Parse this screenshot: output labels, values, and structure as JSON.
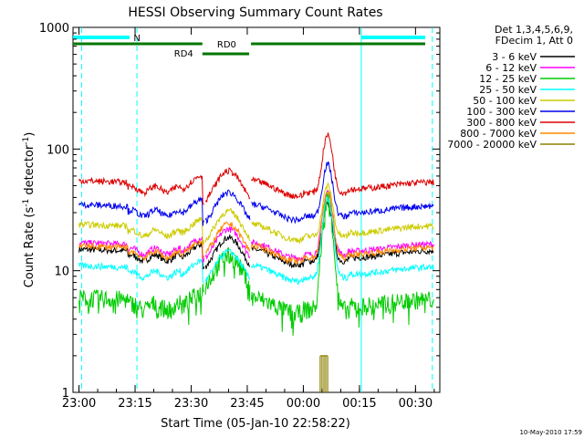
{
  "chart_data": {
    "type": "line",
    "title": "HESSI Observing Summary Count Rates",
    "xlabel": "Start Time (05-Jan-10 22:58:22)",
    "ylabel_prefix": "Count Rate (s",
    "ylabel_sup1": "-1",
    "ylabel_mid": " detector",
    "ylabel_sup2": "-1",
    "ylabel_suffix": ")",
    "yscale": "log",
    "ylim": [
      1,
      1000
    ],
    "xlim_minutes": [
      -2,
      37
    ],
    "x_ticks": [
      {
        "m": 0,
        "label": "23:00"
      },
      {
        "m": 15,
        "label": "23:15"
      },
      {
        "m": 30,
        "label": "23:30"
      },
      {
        "m": 45,
        "label": "23:45"
      },
      {
        "m": 60,
        "label": "00:00"
      },
      {
        "m": 75,
        "label": "00:15"
      },
      {
        "m": 90,
        "label": "00:30"
      }
    ],
    "y_ticks": [
      {
        "v": 1,
        "label": "1"
      },
      {
        "v": 10,
        "label": "10"
      },
      {
        "v": 100,
        "label": "100"
      },
      {
        "v": 1000,
        "label": "1000"
      }
    ],
    "legend_header": [
      "Det 1,3,4,5,6,9,",
      "FDecim 1, Att 0"
    ],
    "legend": "top-right outside",
    "timestamp": "10-May-2010 17:59",
    "series": [
      {
        "name": "3 - 6 keV",
        "color": "#000000",
        "base": 15,
        "mid": 17,
        "peak": 35
      },
      {
        "name": "6 - 12 keV",
        "color": "#ff00ff",
        "base": 17,
        "mid": 20,
        "peak": 45
      },
      {
        "name": "12 - 25 keV",
        "color": "#00cc00",
        "base": 6,
        "mid": 12,
        "peak": 40
      },
      {
        "name": "25 - 50 keV",
        "color": "#00ffff",
        "base": 11,
        "mid": 13,
        "peak": 40
      },
      {
        "name": "50 - 100 keV",
        "color": "#cccc00",
        "base": 24,
        "mid": 28,
        "peak": 50
      },
      {
        "name": "100 - 300 keV",
        "color": "#0000ee",
        "base": 35,
        "mid": 40,
        "peak": 75
      },
      {
        "name": "300 - 800 keV",
        "color": "#dd0000",
        "base": 55,
        "mid": 60,
        "peak": 130
      },
      {
        "name": "800 - 7000 keV",
        "color": "#ff8800",
        "base": 16,
        "mid": 22,
        "peak": 45
      },
      {
        "name": "7000 - 20000 keV",
        "color": "#8b8000",
        "base": 1,
        "mid": 1,
        "peak": 2
      }
    ],
    "annotations": [
      {
        "label": "N",
        "color": "#00ffff"
      },
      {
        "label": "RD0",
        "color": "#008000"
      },
      {
        "label": "RD4",
        "color": "#008000"
      }
    ]
  }
}
